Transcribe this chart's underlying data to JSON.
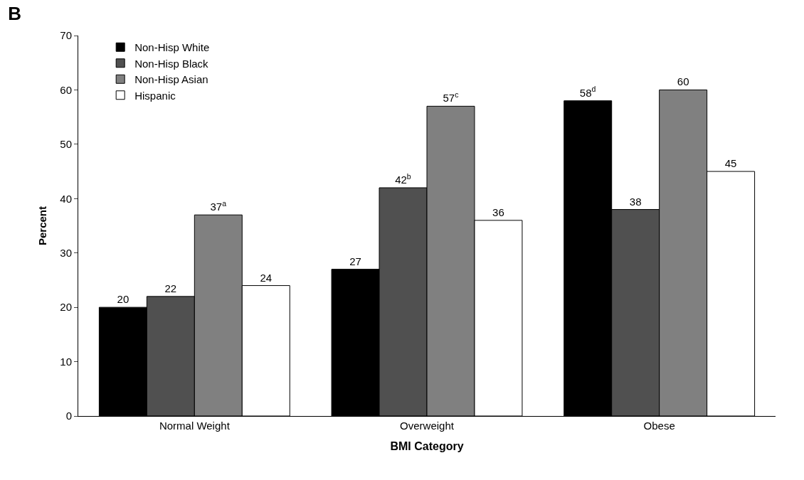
{
  "chart_data": {
    "type": "bar",
    "title": "B",
    "xlabel": "BMI Category",
    "ylabel": "Percent",
    "categories": [
      "Normal Weight",
      "Overweight",
      "Obese"
    ],
    "series": [
      {
        "name": "Non-Hisp White",
        "color": "#000000",
        "values": [
          20,
          27,
          58
        ],
        "value_labels": [
          "20",
          "27",
          "58$^{d}$"
        ]
      },
      {
        "name": "Non-Hisp Black",
        "color": "#505050",
        "values": [
          22,
          42,
          38
        ],
        "value_labels": [
          "22",
          "42$^{b}$",
          "38"
        ]
      },
      {
        "name": "Non-Hisp Asian",
        "color": "#808080",
        "values": [
          37,
          57,
          60
        ],
        "value_labels": [
          "37$^{a}$",
          "57$^{c}$",
          "60"
        ]
      },
      {
        "name": "Hispanic",
        "color": "#ffffff",
        "values": [
          24,
          36,
          45
        ],
        "value_labels": [
          "24",
          "36",
          "45"
        ]
      }
    ],
    "ylim": [
      0,
      70
    ],
    "yticks": [
      0,
      10,
      20,
      30,
      40,
      50,
      60,
      70
    ],
    "grid": false,
    "legend": "top left"
  }
}
